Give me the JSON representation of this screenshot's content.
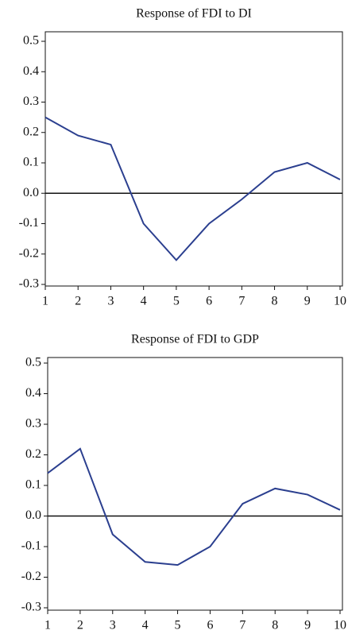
{
  "chart_data": [
    {
      "type": "line",
      "title": "Response of FDI to DI",
      "x": [
        1,
        2,
        3,
        4,
        5,
        6,
        7,
        8,
        9,
        10
      ],
      "series": [
        {
          "color": "#2b3f8f",
          "values": [
            0.25,
            0.19,
            0.16,
            -0.1,
            -0.22,
            -0.1,
            -0.02,
            0.07,
            0.1,
            0.045
          ]
        }
      ],
      "xlim": [
        1,
        10
      ],
      "xticks": [
        1,
        2,
        3,
        4,
        5,
        6,
        7,
        8,
        9,
        10
      ],
      "ylim": [
        -0.3,
        0.5
      ],
      "yticks": [
        -0.3,
        -0.2,
        -0.1,
        {
          "value": 0,
          "label": "0.0"
        },
        0.1,
        0.2,
        0.3,
        0.4,
        0.5
      ]
    },
    {
      "type": "line",
      "title": "Response of FDI to GDP",
      "x": [
        1,
        2,
        3,
        4,
        5,
        6,
        7,
        8,
        9,
        10
      ],
      "series": [
        {
          "color": "#2b3f8f",
          "values": [
            0.14,
            0.22,
            -0.06,
            -0.15,
            -0.16,
            -0.1,
            0.04,
            0.09,
            0.07,
            0.02
          ]
        }
      ],
      "xlim": [
        1,
        10
      ],
      "xticks": [
        1,
        2,
        3,
        4,
        5,
        6,
        7,
        8,
        9,
        10
      ],
      "ylim": [
        -0.3,
        0.5
      ],
      "yticks": [
        -0.3,
        -0.2,
        -0.1,
        {
          "value": 0,
          "label": "0.0"
        },
        0.1,
        0.2,
        0.3,
        0.4,
        0.5
      ]
    }
  ]
}
